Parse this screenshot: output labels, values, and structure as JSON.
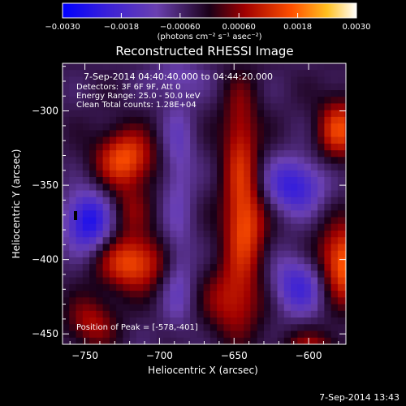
{
  "chart_data": {
    "type": "heatmap",
    "title": "Reconstructed RHESSI Image",
    "xlabel": "Heliocentric X (arcsec)",
    "ylabel": "Heliocentric Y (arcsec)",
    "xlim": [
      -765,
      -575
    ],
    "ylim": [
      -457,
      -268
    ],
    "xticks": [
      -750,
      -700,
      -650,
      -600
    ],
    "yticks": [
      -300,
      -350,
      -400,
      -450
    ],
    "colorbar": {
      "range": [
        -0.003,
        0.003
      ],
      "tick_values": [
        -0.003,
        -0.0018,
        -0.0006,
        0.0006,
        0.0018,
        0.003
      ],
      "tick_labels": [
        "-0.0030",
        "-0.0018",
        "-0.00060",
        "0.00060",
        "0.0018",
        "0.0030"
      ],
      "units": "(photons cm⁻² s⁻¹ asec⁻²)"
    },
    "info_lines": [
      "7-Sep-2014 04:40:40.000 to 04:44:20.000",
      "Detectors: 3F 6F 9F, Att 0",
      "Energy Range: 25.0 - 50.0 keV",
      "Clean    Total counts: 1.28E+04"
    ],
    "peak_text": "Position of Peak = [-578,-401]",
    "features": [
      {
        "x": -725,
        "y": -330,
        "amplitude": 0.002,
        "sx": 14,
        "sy": 14
      },
      {
        "x": -720,
        "y": -400,
        "amplitude": 0.002,
        "sx": 16,
        "sy": 13
      },
      {
        "x": -722,
        "y": -365,
        "amplitude": 0.0008,
        "sx": 10,
        "sy": 12
      },
      {
        "x": -748,
        "y": -440,
        "amplitude": 0.0012,
        "sx": 12,
        "sy": 12
      },
      {
        "x": -648,
        "y": -320,
        "amplitude": 0.0014,
        "sx": 9,
        "sy": 30
      },
      {
        "x": -645,
        "y": -375,
        "amplitude": 0.0018,
        "sx": 10,
        "sy": 22
      },
      {
        "x": -652,
        "y": -425,
        "amplitude": 0.0014,
        "sx": 14,
        "sy": 18
      },
      {
        "x": -582,
        "y": -310,
        "amplitude": 0.0018,
        "sx": 10,
        "sy": 15
      },
      {
        "x": -578,
        "y": -401,
        "amplitude": 0.0024,
        "sx": 13,
        "sy": 18
      },
      {
        "x": -600,
        "y": -460,
        "amplitude": 0.0012,
        "sx": 14,
        "sy": 10
      },
      {
        "x": -750,
        "y": -372,
        "amplitude": -0.0022,
        "sx": 11,
        "sy": 14
      },
      {
        "x": -612,
        "y": -348,
        "amplitude": -0.0018,
        "sx": 14,
        "sy": 13
      },
      {
        "x": -608,
        "y": -415,
        "amplitude": -0.0016,
        "sx": 14,
        "sy": 14
      },
      {
        "x": -690,
        "y": -330,
        "amplitude": -0.0009,
        "sx": 8,
        "sy": 30
      },
      {
        "x": -690,
        "y": -410,
        "amplitude": -0.0009,
        "sx": 8,
        "sy": 25
      },
      {
        "x": -690,
        "y": -275,
        "amplitude": -0.0006,
        "sx": 15,
        "sy": 10
      }
    ]
  },
  "timestamp": "7-Sep-2014 13:43"
}
